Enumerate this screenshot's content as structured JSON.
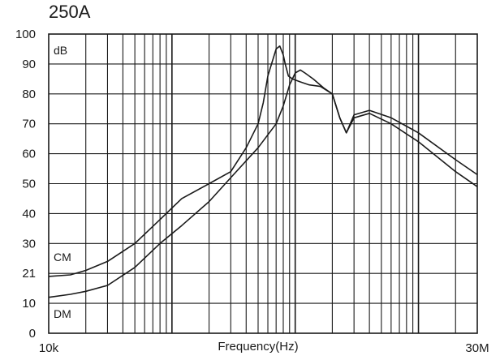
{
  "chart_data": {
    "type": "line",
    "title": "250A",
    "xlabel": "Frequency(Hz)",
    "ylabel": "dB",
    "xscale": "log",
    "xlim": [
      10000,
      30000000
    ],
    "ylim": [
      0,
      100
    ],
    "x_tick_labels": [
      "10k",
      "30M"
    ],
    "y_tick_labels": [
      "100",
      "90",
      "80",
      "70",
      "60",
      "50",
      "40",
      "30",
      "21",
      "10",
      "0"
    ],
    "grid": true,
    "series": [
      {
        "name": "CM",
        "x": [
          10000,
          15000,
          20000,
          30000,
          50000,
          80000,
          120000,
          200000,
          300000,
          400000,
          500000,
          550000,
          600000,
          700000,
          750000,
          800000,
          830000,
          880000,
          950000,
          1100000,
          1300000,
          1600000,
          2000000,
          2300000,
          2600000,
          3000000,
          4000000,
          6000000,
          10000000,
          20000000,
          30000000
        ],
        "y": [
          19,
          19.5,
          21,
          24,
          30,
          38,
          45,
          50,
          54,
          62,
          70,
          77,
          86,
          95,
          96,
          93,
          90,
          86,
          85,
          84,
          83,
          82.5,
          80,
          72,
          67,
          73,
          74.5,
          72,
          67,
          58,
          53
        ]
      },
      {
        "name": "DM",
        "x": [
          10000,
          15000,
          20000,
          30000,
          50000,
          80000,
          120000,
          200000,
          300000,
          500000,
          700000,
          800000,
          900000,
          1000000,
          1100000,
          1200000,
          1400000,
          1700000,
          2000000,
          2300000,
          2600000,
          3000000,
          4000000,
          6000000,
          10000000,
          20000000,
          30000000
        ],
        "y": [
          12,
          13,
          14,
          16,
          22,
          30,
          36,
          44,
          52,
          62,
          70,
          76,
          83,
          87,
          88,
          87,
          85,
          82,
          80,
          72,
          67,
          72,
          73.5,
          70,
          64,
          54,
          49
        ]
      }
    ]
  }
}
